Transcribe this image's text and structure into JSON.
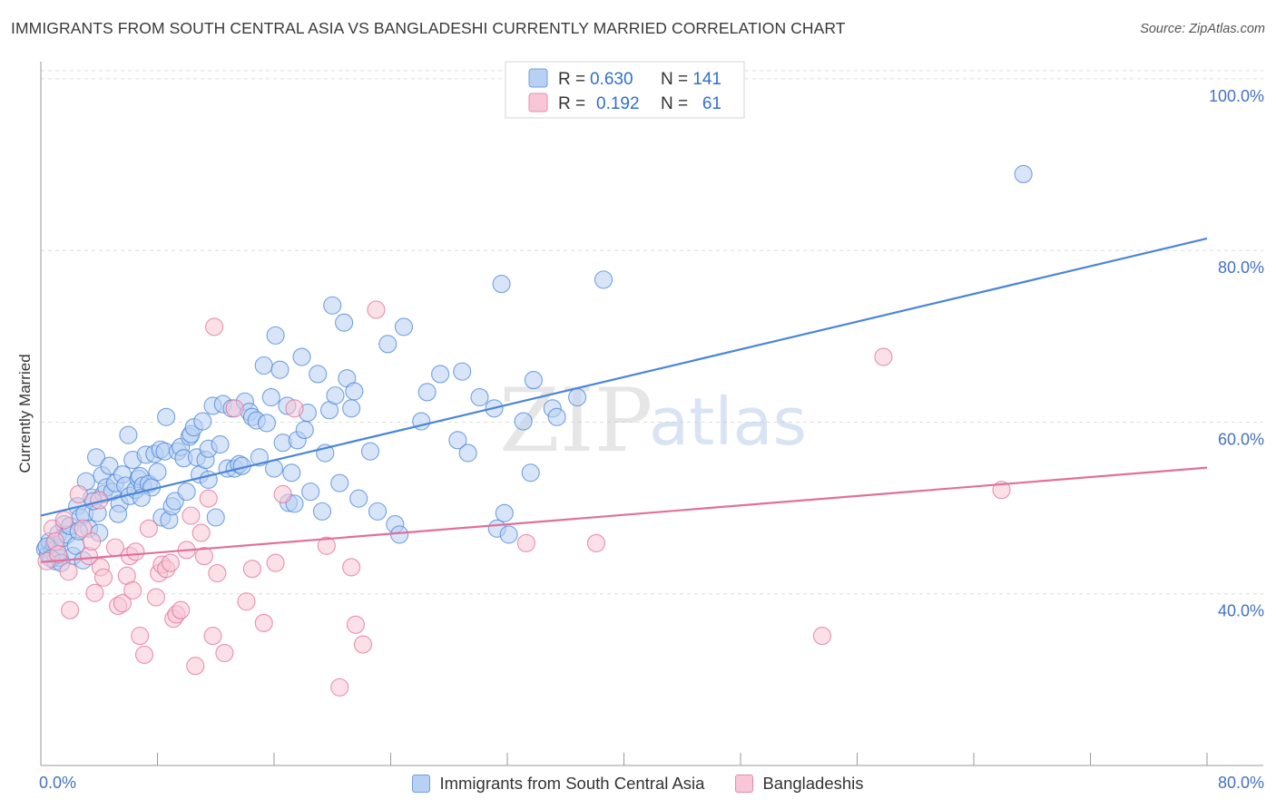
{
  "title": "IMMIGRANTS FROM SOUTH CENTRAL ASIA VS BANGLADESHI CURRENTLY MARRIED CORRELATION CHART",
  "source": "Source: ZipAtlas.com",
  "watermark": {
    "zip": "ZIP",
    "atlas": "atlas"
  },
  "legend": {
    "rows": [
      {
        "r_label": "R =",
        "r_value": "0.630",
        "n_label": "N =",
        "n_value": "141",
        "color": "#6f9fe0",
        "fill": "#b8d0f3"
      },
      {
        "r_label": "R =",
        "r_value": "0.192",
        "n_label": "N =",
        "n_value": "61",
        "color": "#e88aab",
        "fill": "#f8c6d6"
      }
    ]
  },
  "bottom_legend": [
    {
      "label": "Immigrants from South Central Asia",
      "color": "#6f9fe0",
      "fill": "#b8d0f3"
    },
    {
      "label": "Bangladeshis",
      "color": "#e88aab",
      "fill": "#f8c6d6"
    }
  ],
  "chart_data": {
    "type": "scatter",
    "title": "IMMIGRANTS FROM SOUTH CENTRAL ASIA VS BANGLADESHI CURRENTLY MARRIED CORRELATION CHART",
    "xlabel": "",
    "ylabel": "Currently Married",
    "xlim": [
      0,
      80
    ],
    "ylim": [
      20,
      102
    ],
    "x_tick_labels": [
      "0.0%",
      "80.0%"
    ],
    "y_ticks": [
      40,
      60,
      80,
      100
    ],
    "y_tick_labels": [
      "40.0%",
      "60.0%",
      "80.0%",
      "100.0%"
    ],
    "grid": true,
    "series": [
      {
        "name": "Immigrants from South Central Asia",
        "color": "#4a86d8",
        "fill": "#b8d0f3",
        "trend": {
          "x": [
            0,
            80
          ],
          "y": [
            49.1,
            81.4
          ]
        },
        "points": [
          [
            0.3,
            45.2
          ],
          [
            0.5,
            44.6
          ],
          [
            0.6,
            46.1
          ],
          [
            0.8,
            44.9
          ],
          [
            0.9,
            45.8
          ],
          [
            1.0,
            43.8
          ],
          [
            1.1,
            45.3
          ],
          [
            1.2,
            47.0
          ],
          [
            1.3,
            44.2
          ],
          [
            1.5,
            46.5
          ],
          [
            1.6,
            48.1
          ],
          [
            1.8,
            46.9
          ],
          [
            2.0,
            47.9
          ],
          [
            2.2,
            44.4
          ],
          [
            2.4,
            45.6
          ],
          [
            2.5,
            50.2
          ],
          [
            2.7,
            48.9
          ],
          [
            2.9,
            43.9
          ],
          [
            3.0,
            49.3
          ],
          [
            3.1,
            53.1
          ],
          [
            3.3,
            47.6
          ],
          [
            3.5,
            51.2
          ],
          [
            3.8,
            55.9
          ],
          [
            3.9,
            49.4
          ],
          [
            4.0,
            47.1
          ],
          [
            4.2,
            53.8
          ],
          [
            4.3,
            51.6
          ],
          [
            4.5,
            52.4
          ],
          [
            4.7,
            54.9
          ],
          [
            4.9,
            51.9
          ],
          [
            5.1,
            52.9
          ],
          [
            5.4,
            50.5
          ],
          [
            5.6,
            53.9
          ],
          [
            5.8,
            52.6
          ],
          [
            6.0,
            58.5
          ],
          [
            6.1,
            51.4
          ],
          [
            6.3,
            55.6
          ],
          [
            6.5,
            52.1
          ],
          [
            6.7,
            53.4
          ],
          [
            6.8,
            53.7
          ],
          [
            7.0,
            52.6
          ],
          [
            7.2,
            56.2
          ],
          [
            7.4,
            52.8
          ],
          [
            7.6,
            52.4
          ],
          [
            7.8,
            56.3
          ],
          [
            8.0,
            54.2
          ],
          [
            8.2,
            56.8
          ],
          [
            8.3,
            48.9
          ],
          [
            8.5,
            56.6
          ],
          [
            8.6,
            60.6
          ],
          [
            8.8,
            48.6
          ],
          [
            9.0,
            50.2
          ],
          [
            9.2,
            50.8
          ],
          [
            9.4,
            56.6
          ],
          [
            9.6,
            57.1
          ],
          [
            9.8,
            55.8
          ],
          [
            10.0,
            51.9
          ],
          [
            10.2,
            58.3
          ],
          [
            10.3,
            58.6
          ],
          [
            10.5,
            59.4
          ],
          [
            10.7,
            55.9
          ],
          [
            10.9,
            53.9
          ],
          [
            11.1,
            60.1
          ],
          [
            11.3,
            55.6
          ],
          [
            11.5,
            56.9
          ],
          [
            11.8,
            61.9
          ],
          [
            12.0,
            48.9
          ],
          [
            12.3,
            57.4
          ],
          [
            12.5,
            62.1
          ],
          [
            12.8,
            54.6
          ],
          [
            13.1,
            61.6
          ],
          [
            13.3,
            54.6
          ],
          [
            13.6,
            55.1
          ],
          [
            13.8,
            54.9
          ],
          [
            14.0,
            62.4
          ],
          [
            14.3,
            61.2
          ],
          [
            14.5,
            60.6
          ],
          [
            14.8,
            60.2
          ],
          [
            15.0,
            55.9
          ],
          [
            15.3,
            66.6
          ],
          [
            15.5,
            59.9
          ],
          [
            15.8,
            62.9
          ],
          [
            16.0,
            54.6
          ],
          [
            16.1,
            70.1
          ],
          [
            16.4,
            66.1
          ],
          [
            16.6,
            57.6
          ],
          [
            16.9,
            61.9
          ],
          [
            17.0,
            50.6
          ],
          [
            17.2,
            54.1
          ],
          [
            17.4,
            50.5
          ],
          [
            17.6,
            57.9
          ],
          [
            17.9,
            67.6
          ],
          [
            18.1,
            59.1
          ],
          [
            18.3,
            61.1
          ],
          [
            18.5,
            51.9
          ],
          [
            19.0,
            65.6
          ],
          [
            19.3,
            49.6
          ],
          [
            19.5,
            56.4
          ],
          [
            19.8,
            61.4
          ],
          [
            20.0,
            73.6
          ],
          [
            20.2,
            63.1
          ],
          [
            20.5,
            52.9
          ],
          [
            20.8,
            71.6
          ],
          [
            21.0,
            65.1
          ],
          [
            21.3,
            61.6
          ],
          [
            21.5,
            63.6
          ],
          [
            21.8,
            51.1
          ],
          [
            22.6,
            56.6
          ],
          [
            23.1,
            49.6
          ],
          [
            23.8,
            69.1
          ],
          [
            24.3,
            48.1
          ],
          [
            24.6,
            46.9
          ],
          [
            24.9,
            71.1
          ],
          [
            26.1,
            60.1
          ],
          [
            26.5,
            63.5
          ],
          [
            27.4,
            65.6
          ],
          [
            28.6,
            57.9
          ],
          [
            28.9,
            65.9
          ],
          [
            29.3,
            56.4
          ],
          [
            30.1,
            62.9
          ],
          [
            31.1,
            61.6
          ],
          [
            31.3,
            47.6
          ],
          [
            31.8,
            49.4
          ],
          [
            32.1,
            46.9
          ],
          [
            33.1,
            60.1
          ],
          [
            33.6,
            54.1
          ],
          [
            33.8,
            64.9
          ],
          [
            35.1,
            61.6
          ],
          [
            35.4,
            60.6
          ],
          [
            36.8,
            62.9
          ],
          [
            31.6,
            76.1
          ],
          [
            38.6,
            76.6
          ],
          [
            67.4,
            88.9
          ],
          [
            0.4,
            45.5
          ],
          [
            0.7,
            44.1
          ],
          [
            1.4,
            43.6
          ],
          [
            2.6,
            47.3
          ],
          [
            3.6,
            50.8
          ],
          [
            5.3,
            49.3
          ],
          [
            6.9,
            51.2
          ],
          [
            11.5,
            53.3
          ]
        ]
      },
      {
        "name": "Bangladeshis",
        "color": "#e0709a",
        "fill": "#f8c6d6",
        "trend": {
          "x": [
            0,
            80
          ],
          "y": [
            43.7,
            54.7
          ]
        },
        "points": [
          [
            0.4,
            43.8
          ],
          [
            0.8,
            47.6
          ],
          [
            1.0,
            46.1
          ],
          [
            1.2,
            44.6
          ],
          [
            1.6,
            48.6
          ],
          [
            1.9,
            42.6
          ],
          [
            2.0,
            38.1
          ],
          [
            2.6,
            51.6
          ],
          [
            2.9,
            47.6
          ],
          [
            3.3,
            44.4
          ],
          [
            3.5,
            46.1
          ],
          [
            3.7,
            40.1
          ],
          [
            4.0,
            50.9
          ],
          [
            4.1,
            43.1
          ],
          [
            4.3,
            41.9
          ],
          [
            5.1,
            45.4
          ],
          [
            5.3,
            38.6
          ],
          [
            5.6,
            38.9
          ],
          [
            5.9,
            42.1
          ],
          [
            6.1,
            44.4
          ],
          [
            6.3,
            40.4
          ],
          [
            6.5,
            44.9
          ],
          [
            6.8,
            35.1
          ],
          [
            7.1,
            32.9
          ],
          [
            7.4,
            47.6
          ],
          [
            7.9,
            39.6
          ],
          [
            8.1,
            42.4
          ],
          [
            8.3,
            43.4
          ],
          [
            8.6,
            42.9
          ],
          [
            8.9,
            43.6
          ],
          [
            9.1,
            37.1
          ],
          [
            9.3,
            37.6
          ],
          [
            9.6,
            38.1
          ],
          [
            10.0,
            45.1
          ],
          [
            10.3,
            49.1
          ],
          [
            10.6,
            31.6
          ],
          [
            11.0,
            47.1
          ],
          [
            11.2,
            44.4
          ],
          [
            11.5,
            51.1
          ],
          [
            11.8,
            35.1
          ],
          [
            12.1,
            42.4
          ],
          [
            12.6,
            33.1
          ],
          [
            13.3,
            61.6
          ],
          [
            14.1,
            39.1
          ],
          [
            14.5,
            42.9
          ],
          [
            15.3,
            36.6
          ],
          [
            16.1,
            43.6
          ],
          [
            16.6,
            51.6
          ],
          [
            17.4,
            61.6
          ],
          [
            19.6,
            45.6
          ],
          [
            20.5,
            29.1
          ],
          [
            21.3,
            43.1
          ],
          [
            21.6,
            36.4
          ],
          [
            22.1,
            34.1
          ],
          [
            23.0,
            73.1
          ],
          [
            33.3,
            45.9
          ],
          [
            38.1,
            45.9
          ],
          [
            53.6,
            35.1
          ],
          [
            57.8,
            67.6
          ],
          [
            65.9,
            52.1
          ],
          [
            11.9,
            71.1
          ]
        ]
      }
    ]
  }
}
